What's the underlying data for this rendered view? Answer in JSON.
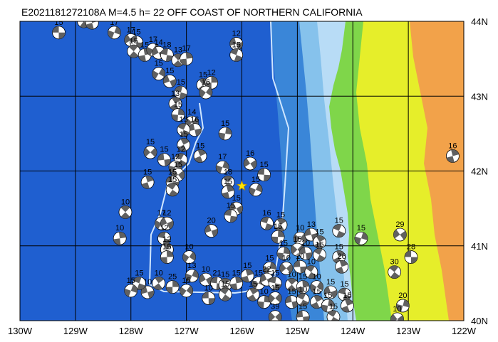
{
  "title": "E2021181272108A  M=4.5  h= 22  OFF COAST OF NORTHERN CALIFORNIA",
  "map": {
    "lon_range": [
      -130,
      -122
    ],
    "lat_range": [
      40,
      44
    ],
    "lon_ticks": [
      {
        "value": -130,
        "label": "130W"
      },
      {
        "value": -129,
        "label": "129W"
      },
      {
        "value": -128,
        "label": "128W"
      },
      {
        "value": -127,
        "label": "127W"
      },
      {
        "value": -126,
        "label": "126W"
      },
      {
        "value": -125,
        "label": "125W"
      },
      {
        "value": -124,
        "label": "124W"
      },
      {
        "value": -123,
        "label": "123W"
      },
      {
        "value": -122,
        "label": "122W"
      }
    ],
    "lat_ticks": [
      {
        "value": 44,
        "label": "44N"
      },
      {
        "value": 43,
        "label": "43N"
      },
      {
        "value": 42,
        "label": "42N"
      },
      {
        "value": 41,
        "label": "41N"
      },
      {
        "value": 40,
        "label": "40N"
      }
    ],
    "colors": {
      "deep_ocean": "#1f5fd0",
      "mid_ocean": "#3a86d8",
      "shelf": "#86c2ec",
      "shallow": "#b8dcf6",
      "land_low": "#7fd64a",
      "land_mid": "#e6ee2a",
      "land_high": "#f2a24a",
      "grid": "#000000",
      "focal_dark": "#606060",
      "focal_light": "#ffffff",
      "star": "#ffe600"
    },
    "epicenter": {
      "lon": -126.0,
      "lat": 41.8
    }
  },
  "events": [
    {
      "lon": -129.3,
      "lat": 43.85,
      "mag": "15"
    },
    {
      "lon": -128.85,
      "lat": 44.0,
      "mag": "13"
    },
    {
      "lon": -128.7,
      "lat": 43.98,
      "mag": "15"
    },
    {
      "lon": -128.3,
      "lat": 43.85,
      "mag": "17"
    },
    {
      "lon": -128.0,
      "lat": 43.75,
      "mag": "17"
    },
    {
      "lon": -127.9,
      "lat": 43.72,
      "mag": "15"
    },
    {
      "lon": -127.95,
      "lat": 43.6,
      "mag": "15"
    },
    {
      "lon": -127.75,
      "lat": 43.55,
      "mag": "15"
    },
    {
      "lon": -127.6,
      "lat": 43.62,
      "mag": "17"
    },
    {
      "lon": -127.5,
      "lat": 43.58,
      "mag": "14"
    },
    {
      "lon": -127.35,
      "lat": 43.55,
      "mag": "18"
    },
    {
      "lon": -127.15,
      "lat": 43.48,
      "mag": "13"
    },
    {
      "lon": -127.0,
      "lat": 43.5,
      "mag": "17"
    },
    {
      "lon": -127.5,
      "lat": 43.3,
      "mag": "15"
    },
    {
      "lon": -127.3,
      "lat": 43.2,
      "mag": "15"
    },
    {
      "lon": -127.1,
      "lat": 43.05,
      "mag": "15"
    },
    {
      "lon": -126.7,
      "lat": 43.15,
      "mag": "15"
    },
    {
      "lon": -126.55,
      "lat": 43.18,
      "mag": "12"
    },
    {
      "lon": -126.65,
      "lat": 43.05,
      "mag": "16"
    },
    {
      "lon": -126.1,
      "lat": 43.7,
      "mag": "12"
    },
    {
      "lon": -126.1,
      "lat": 43.55,
      "mag": "15"
    },
    {
      "lon": -127.2,
      "lat": 42.9,
      "mag": "13"
    },
    {
      "lon": -127.15,
      "lat": 42.75,
      "mag": "15"
    },
    {
      "lon": -126.9,
      "lat": 42.65,
      "mag": "14"
    },
    {
      "lon": -126.85,
      "lat": 42.55,
      "mag": "16"
    },
    {
      "lon": -127.05,
      "lat": 42.55,
      "mag": "15"
    },
    {
      "lon": -127.05,
      "lat": 42.35,
      "mag": "15"
    },
    {
      "lon": -126.3,
      "lat": 42.5,
      "mag": "15"
    },
    {
      "lon": -127.65,
      "lat": 42.25,
      "mag": "15"
    },
    {
      "lon": -127.4,
      "lat": 42.15,
      "mag": "15"
    },
    {
      "lon": -127.1,
      "lat": 42.15,
      "mag": "12"
    },
    {
      "lon": -126.75,
      "lat": 42.2,
      "mag": "15"
    },
    {
      "lon": -127.2,
      "lat": 42.05,
      "mag": "12"
    },
    {
      "lon": -127.15,
      "lat": 41.95,
      "mag": "15"
    },
    {
      "lon": -127.25,
      "lat": 41.85,
      "mag": "15"
    },
    {
      "lon": -127.25,
      "lat": 41.75,
      "mag": "15"
    },
    {
      "lon": -127.7,
      "lat": 41.85,
      "mag": "15"
    },
    {
      "lon": -126.35,
      "lat": 42.05,
      "mag": "17"
    },
    {
      "lon": -125.85,
      "lat": 42.1,
      "mag": "16"
    },
    {
      "lon": -125.6,
      "lat": 41.95,
      "mag": "15"
    },
    {
      "lon": -126.25,
      "lat": 41.85,
      "mag": "18"
    },
    {
      "lon": -126.25,
      "lat": 41.72,
      "mag": "15"
    },
    {
      "lon": -125.75,
      "lat": 41.75,
      "mag": "15"
    },
    {
      "lon": -126.1,
      "lat": 41.5,
      "mag": "15"
    },
    {
      "lon": -126.2,
      "lat": 41.4,
      "mag": "15"
    },
    {
      "lon": -128.1,
      "lat": 41.45,
      "mag": "10"
    },
    {
      "lon": -128.2,
      "lat": 41.1,
      "mag": "10"
    },
    {
      "lon": -127.45,
      "lat": 41.3,
      "mag": "17"
    },
    {
      "lon": -127.35,
      "lat": 41.3,
      "mag": "12"
    },
    {
      "lon": -127.4,
      "lat": 41.1,
      "mag": "12"
    },
    {
      "lon": -127.35,
      "lat": 40.95,
      "mag": "12"
    },
    {
      "lon": -127.35,
      "lat": 40.85,
      "mag": "15"
    },
    {
      "lon": -126.95,
      "lat": 40.85,
      "mag": "10"
    },
    {
      "lon": -126.55,
      "lat": 41.2,
      "mag": "20"
    },
    {
      "lon": -125.55,
      "lat": 41.3,
      "mag": "16"
    },
    {
      "lon": -125.3,
      "lat": 41.28,
      "mag": "15"
    },
    {
      "lon": -125.35,
      "lat": 41.12,
      "mag": "15"
    },
    {
      "lon": -124.95,
      "lat": 41.1,
      "mag": "10"
    },
    {
      "lon": -124.75,
      "lat": 41.15,
      "mag": "13"
    },
    {
      "lon": -124.25,
      "lat": 41.2,
      "mag": "15"
    },
    {
      "lon": -124.6,
      "lat": 41.05,
      "mag": "15"
    },
    {
      "lon": -125.25,
      "lat": 40.9,
      "mag": "15"
    },
    {
      "lon": -125.0,
      "lat": 40.95,
      "mag": "15"
    },
    {
      "lon": -124.85,
      "lat": 40.9,
      "mag": "10"
    },
    {
      "lon": -124.6,
      "lat": 40.88,
      "mag": "15"
    },
    {
      "lon": -124.25,
      "lat": 40.85,
      "mag": "15"
    },
    {
      "lon": -125.5,
      "lat": 40.7,
      "mag": "15"
    },
    {
      "lon": -125.2,
      "lat": 40.7,
      "mag": "10"
    },
    {
      "lon": -124.95,
      "lat": 40.72,
      "mag": "10"
    },
    {
      "lon": -124.75,
      "lat": 40.65,
      "mag": "10"
    },
    {
      "lon": -124.2,
      "lat": 40.72,
      "mag": "26"
    },
    {
      "lon": -123.85,
      "lat": 41.1,
      "mag": "15"
    },
    {
      "lon": -123.15,
      "lat": 41.15,
      "mag": "29"
    },
    {
      "lon": -122.95,
      "lat": 40.85,
      "mag": "28"
    },
    {
      "lon": -123.25,
      "lat": 40.65,
      "mag": "30"
    },
    {
      "lon": -122.2,
      "lat": 42.2,
      "mag": "16"
    },
    {
      "lon": -126.9,
      "lat": 40.6,
      "mag": "13"
    },
    {
      "lon": -126.65,
      "lat": 40.55,
      "mag": "10"
    },
    {
      "lon": -126.45,
      "lat": 40.5,
      "mag": "21"
    },
    {
      "lon": -126.3,
      "lat": 40.48,
      "mag": "15"
    },
    {
      "lon": -126.1,
      "lat": 40.5,
      "mag": "15"
    },
    {
      "lon": -125.7,
      "lat": 40.5,
      "mag": "15"
    },
    {
      "lon": -125.55,
      "lat": 40.55,
      "mag": "22"
    },
    {
      "lon": -125.4,
      "lat": 40.5,
      "mag": "15"
    },
    {
      "lon": -125.1,
      "lat": 40.48,
      "mag": "10"
    },
    {
      "lon": -124.9,
      "lat": 40.45,
      "mag": "15"
    },
    {
      "lon": -124.65,
      "lat": 40.45,
      "mag": "10"
    },
    {
      "lon": -124.4,
      "lat": 40.38,
      "mag": "15"
    },
    {
      "lon": -124.15,
      "lat": 40.35,
      "mag": "15"
    },
    {
      "lon": -127.5,
      "lat": 40.5,
      "mag": "10"
    },
    {
      "lon": -127.25,
      "lat": 40.45,
      "mag": "25"
    },
    {
      "lon": -127.0,
      "lat": 40.4,
      "mag": "15"
    },
    {
      "lon": -127.7,
      "lat": 40.38,
      "mag": "10"
    },
    {
      "lon": -127.85,
      "lat": 40.5,
      "mag": "15"
    },
    {
      "lon": -125.8,
      "lat": 40.35,
      "mag": "15"
    },
    {
      "lon": -125.6,
      "lat": 40.25,
      "mag": "10"
    },
    {
      "lon": -125.4,
      "lat": 40.3,
      "mag": "15"
    },
    {
      "lon": -125.1,
      "lat": 40.25,
      "mag": "15"
    },
    {
      "lon": -124.9,
      "lat": 40.28,
      "mag": "10"
    },
    {
      "lon": -124.65,
      "lat": 40.25,
      "mag": "15"
    },
    {
      "lon": -124.45,
      "lat": 40.2,
      "mag": "15"
    },
    {
      "lon": -125.4,
      "lat": 40.05,
      "mag": "39"
    },
    {
      "lon": -124.9,
      "lat": 40.05,
      "mag": "15"
    },
    {
      "lon": -124.35,
      "lat": 40.05,
      "mag": "15"
    },
    {
      "lon": -124.1,
      "lat": 40.2,
      "mag": "15"
    },
    {
      "lon": -123.1,
      "lat": 40.2,
      "mag": "20"
    },
    {
      "lon": -123.2,
      "lat": 40.02,
      "mag": "10"
    },
    {
      "lon": -126.6,
      "lat": 40.3,
      "mag": "10"
    },
    {
      "lon": -126.3,
      "lat": 40.35,
      "mag": "15"
    },
    {
      "lon": -125.9,
      "lat": 40.6,
      "mag": "15"
    },
    {
      "lon": -128.0,
      "lat": 40.4,
      "mag": "15"
    }
  ]
}
